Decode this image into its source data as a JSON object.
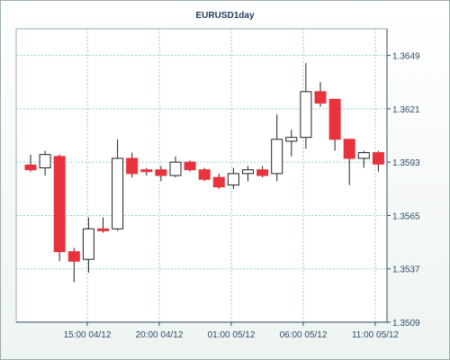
{
  "chart_data": {
    "type": "candlestick",
    "title": "EURUSD1day",
    "xlabel": "",
    "ylabel": "",
    "ylim": [
      1.3509,
      1.3663
    ],
    "grid": true,
    "legend": "none",
    "y_ticks": [
      "1.3649",
      "1.3621",
      "1.3593",
      "1.3565",
      "1.3537",
      "1.3509"
    ],
    "x_ticks": [
      "15:00 04/12",
      "20:00 04/12",
      "01:00 05/12",
      "06:00 05/12",
      "11:00 05/12"
    ],
    "colors": {
      "up_fill": "#ffffff",
      "down_fill": "#e8323c",
      "wick": "#222222",
      "grid": "#8fd0cc",
      "axis": "#2e4a6a"
    },
    "candles": [
      {
        "open": 1.35915,
        "high": 1.3597,
        "low": 1.3588,
        "close": 1.3589
      },
      {
        "open": 1.359,
        "high": 1.3599,
        "low": 1.3586,
        "close": 1.3597
      },
      {
        "open": 1.3596,
        "high": 1.3597,
        "low": 1.3541,
        "close": 1.3546
      },
      {
        "open": 1.3546,
        "high": 1.3548,
        "low": 1.353,
        "close": 1.3541
      },
      {
        "open": 1.3542,
        "high": 1.3564,
        "low": 1.3535,
        "close": 1.3558
      },
      {
        "open": 1.3558,
        "high": 1.3564,
        "low": 1.3556,
        "close": 1.3557
      },
      {
        "open": 1.3558,
        "high": 1.3605,
        "low": 1.3557,
        "close": 1.3595
      },
      {
        "open": 1.3595,
        "high": 1.3598,
        "low": 1.3585,
        "close": 1.3587
      },
      {
        "open": 1.3589,
        "high": 1.359,
        "low": 1.3586,
        "close": 1.3588
      },
      {
        "open": 1.3589,
        "high": 1.3591,
        "low": 1.3583,
        "close": 1.3586
      },
      {
        "open": 1.3586,
        "high": 1.3596,
        "low": 1.3585,
        "close": 1.3593
      },
      {
        "open": 1.3593,
        "high": 1.3594,
        "low": 1.3588,
        "close": 1.3589
      },
      {
        "open": 1.3589,
        "high": 1.359,
        "low": 1.3583,
        "close": 1.3584
      },
      {
        "open": 1.3585,
        "high": 1.3587,
        "low": 1.3579,
        "close": 1.358
      },
      {
        "open": 1.3581,
        "high": 1.359,
        "low": 1.3579,
        "close": 1.3587
      },
      {
        "open": 1.3587,
        "high": 1.3591,
        "low": 1.3583,
        "close": 1.3589
      },
      {
        "open": 1.3589,
        "high": 1.3591,
        "low": 1.3585,
        "close": 1.3586
      },
      {
        "open": 1.3587,
        "high": 1.3618,
        "low": 1.3583,
        "close": 1.3605
      },
      {
        "open": 1.3604,
        "high": 1.361,
        "low": 1.3596,
        "close": 1.3606
      },
      {
        "open": 1.3606,
        "high": 1.3645,
        "low": 1.36,
        "close": 1.363
      },
      {
        "open": 1.363,
        "high": 1.3635,
        "low": 1.3622,
        "close": 1.3624
      },
      {
        "open": 1.3626,
        "high": 1.3626,
        "low": 1.3599,
        "close": 1.3605
      },
      {
        "open": 1.3605,
        "high": 1.3605,
        "low": 1.3581,
        "close": 1.3595
      },
      {
        "open": 1.3595,
        "high": 1.3599,
        "low": 1.359,
        "close": 1.3598
      },
      {
        "open": 1.3598,
        "high": 1.3599,
        "low": 1.3588,
        "close": 1.3592
      }
    ]
  }
}
